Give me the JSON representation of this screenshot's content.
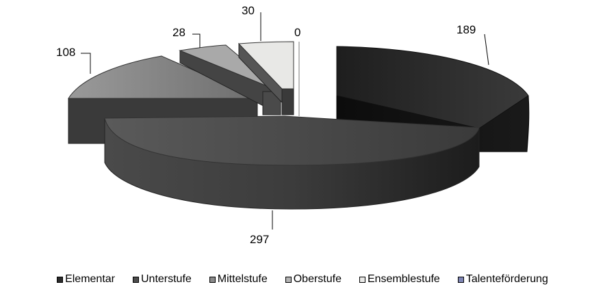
{
  "chart_data": {
    "type": "pie",
    "title": "",
    "categories": [
      "Elementar",
      "Unterstufe",
      "Mittelstufe",
      "Oberstufe",
      "Ensemblestufe",
      "Talenteförderung"
    ],
    "values": [
      189,
      297,
      108,
      28,
      30,
      0
    ],
    "colors": [
      "#2b2b2b",
      "#4c4c4c",
      "#8a8a8a",
      "#b3b3b3",
      "#e8e8e6",
      "#7f86b5"
    ],
    "legend_position": "bottom",
    "exploded": true,
    "perspective_3d": true
  }
}
